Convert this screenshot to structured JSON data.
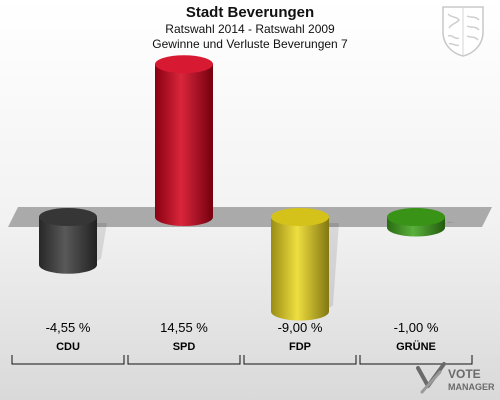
{
  "header": {
    "title": "Stadt Beverungen",
    "subtitle": "Ratswahl 2014 - Ratswahl 2009",
    "subtitle2": "Gewinne und Verluste Beverungen 7"
  },
  "watermark": {
    "line1": "VOTE",
    "line2": "MANAGER"
  },
  "chart_data": {
    "type": "bar",
    "title": "Stadt Beverungen",
    "subtitle": "Ratswahl 2014 - Ratswahl 2009",
    "xlabel": "",
    "ylabel": "",
    "categories": [
      "CDU",
      "SPD",
      "FDP",
      "GRÜNE"
    ],
    "values": [
      -4.55,
      14.55,
      -9.0,
      -1.0
    ],
    "value_labels": [
      "-4,55 %",
      "14,55 %",
      "-9,00 %",
      "-1,00 %"
    ],
    "colors": [
      "#3c3c3c",
      "#d2001a",
      "#ecd81e",
      "#3ea31a"
    ],
    "unit": "%",
    "grid": false,
    "legend": "none"
  }
}
